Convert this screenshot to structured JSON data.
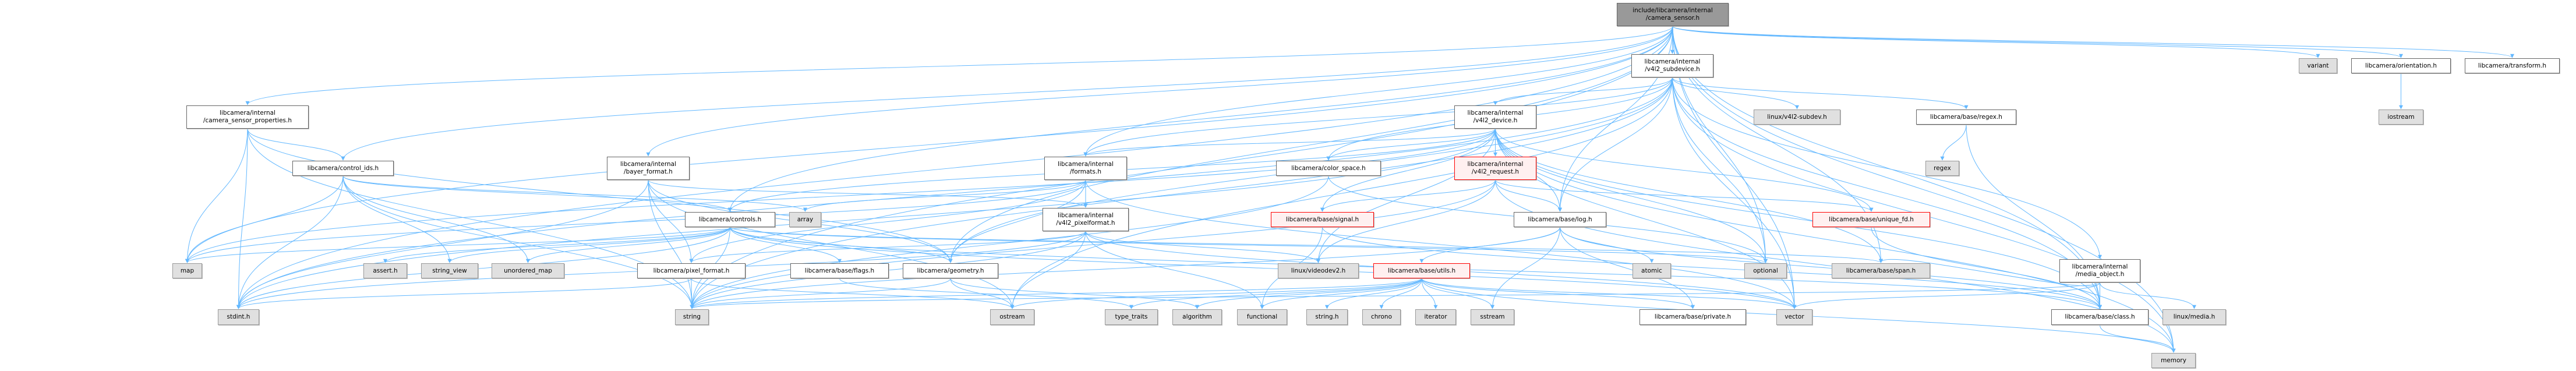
{
  "colors": {
    "edge": "#63b8ff",
    "root_fill": "#999999",
    "external_fill": "#e0e0e0",
    "truncated_border": "#ff0000"
  },
  "nodes": [
    {
      "id": "root",
      "label": "include/libcamera/internal\n/camera_sensor.h",
      "kind": "root"
    },
    {
      "id": "v4l2_subdevice",
      "label": "libcamera/internal\n/v4l2_subdevice.h",
      "kind": "white"
    },
    {
      "id": "variant",
      "label": "variant",
      "kind": "gray"
    },
    {
      "id": "orientation",
      "label": "libcamera/orientation.h",
      "kind": "white"
    },
    {
      "id": "transform",
      "label": "libcamera/transform.h",
      "kind": "white"
    },
    {
      "id": "csp",
      "label": "libcamera/internal\n/camera_sensor_properties.h",
      "kind": "white"
    },
    {
      "id": "v4l2_device",
      "label": "libcamera/internal\n/v4l2_device.h",
      "kind": "white"
    },
    {
      "id": "v4l2subdev_h",
      "label": "linux/v4l2-subdev.h",
      "kind": "gray"
    },
    {
      "id": "regex_h",
      "label": "libcamera/base/regex.h",
      "kind": "white"
    },
    {
      "id": "iostream",
      "label": "iostream",
      "kind": "gray"
    },
    {
      "id": "bayer",
      "label": "libcamera/internal\n/bayer_format.h",
      "kind": "white"
    },
    {
      "id": "formats",
      "label": "libcamera/internal\n/formats.h",
      "kind": "white"
    },
    {
      "id": "v4l2_request",
      "label": "libcamera/internal\n/v4l2_request.h",
      "kind": "red"
    },
    {
      "id": "control_ids",
      "label": "libcamera/control_ids.h",
      "kind": "white"
    },
    {
      "id": "color_space",
      "label": "libcamera/color_space.h",
      "kind": "white"
    },
    {
      "id": "regex",
      "label": "regex",
      "kind": "gray"
    },
    {
      "id": "v4l2_pixelformat",
      "label": "libcamera/internal\n/v4l2_pixelformat.h",
      "kind": "white"
    },
    {
      "id": "controls",
      "label": "libcamera/controls.h",
      "kind": "white"
    },
    {
      "id": "array",
      "label": "array",
      "kind": "gray"
    },
    {
      "id": "signal",
      "label": "libcamera/base/signal.h",
      "kind": "red"
    },
    {
      "id": "log",
      "label": "libcamera/base/log.h",
      "kind": "white"
    },
    {
      "id": "unique_fd",
      "label": "libcamera/base/unique_fd.h",
      "kind": "red"
    },
    {
      "id": "media_object",
      "label": "libcamera/internal\n/media_object.h",
      "kind": "white"
    },
    {
      "id": "map",
      "label": "map",
      "kind": "gray"
    },
    {
      "id": "assert",
      "label": "assert.h",
      "kind": "gray"
    },
    {
      "id": "string_view",
      "label": "string_view",
      "kind": "gray"
    },
    {
      "id": "unordered_map",
      "label": "unordered_map",
      "kind": "gray"
    },
    {
      "id": "pixel_format",
      "label": "libcamera/pixel_format.h",
      "kind": "white"
    },
    {
      "id": "flags",
      "label": "libcamera/base/flags.h",
      "kind": "white"
    },
    {
      "id": "geometry",
      "label": "libcamera/geometry.h",
      "kind": "white"
    },
    {
      "id": "videodev2",
      "label": "linux/videodev2.h",
      "kind": "gray"
    },
    {
      "id": "utils",
      "label": "libcamera/base/utils.h",
      "kind": "red"
    },
    {
      "id": "atomic",
      "label": "atomic",
      "kind": "gray"
    },
    {
      "id": "optional",
      "label": "optional",
      "kind": "gray"
    },
    {
      "id": "span",
      "label": "libcamera/base/span.h",
      "kind": "gray"
    },
    {
      "id": "stdint",
      "label": "stdint.h",
      "kind": "gray"
    },
    {
      "id": "string",
      "label": "string",
      "kind": "gray"
    },
    {
      "id": "ostream",
      "label": "ostream",
      "kind": "gray"
    },
    {
      "id": "type_traits",
      "label": "type_traits",
      "kind": "gray"
    },
    {
      "id": "algorithm",
      "label": "algorithm",
      "kind": "gray"
    },
    {
      "id": "functional",
      "label": "functional",
      "kind": "gray"
    },
    {
      "id": "string_h",
      "label": "string.h",
      "kind": "gray"
    },
    {
      "id": "chrono",
      "label": "chrono",
      "kind": "gray"
    },
    {
      "id": "iterator",
      "label": "iterator",
      "kind": "gray"
    },
    {
      "id": "sstream",
      "label": "sstream",
      "kind": "gray"
    },
    {
      "id": "private",
      "label": "libcamera/base/private.h",
      "kind": "white"
    },
    {
      "id": "vector",
      "label": "vector",
      "kind": "gray"
    },
    {
      "id": "class",
      "label": "libcamera/base/class.h",
      "kind": "white"
    },
    {
      "id": "linux_media",
      "label": "linux/media.h",
      "kind": "gray"
    },
    {
      "id": "memory",
      "label": "memory",
      "kind": "gray"
    }
  ],
  "edges": [
    [
      "root",
      "v4l2_subdevice"
    ],
    [
      "root",
      "variant"
    ],
    [
      "root",
      "orientation"
    ],
    [
      "root",
      "transform"
    ],
    [
      "root",
      "csp"
    ],
    [
      "root",
      "bayer"
    ],
    [
      "root",
      "formats"
    ],
    [
      "root",
      "control_ids"
    ],
    [
      "root",
      "controls"
    ],
    [
      "root",
      "geometry"
    ],
    [
      "root",
      "log"
    ],
    [
      "root",
      "class"
    ],
    [
      "root",
      "memory"
    ],
    [
      "root",
      "string"
    ],
    [
      "root",
      "stdint"
    ],
    [
      "root",
      "vector"
    ],
    [
      "root",
      "map"
    ],
    [
      "root",
      "optional"
    ],
    [
      "root",
      "span"
    ],
    [
      "v4l2_subdevice",
      "v4l2_device"
    ],
    [
      "v4l2_subdevice",
      "v4l2subdev_h"
    ],
    [
      "v4l2_subdevice",
      "regex_h"
    ],
    [
      "v4l2_subdevice",
      "color_space"
    ],
    [
      "v4l2_subdevice",
      "formats"
    ],
    [
      "v4l2_subdevice",
      "geometry"
    ],
    [
      "v4l2_subdevice",
      "media_object"
    ],
    [
      "v4l2_subdevice",
      "log"
    ],
    [
      "v4l2_subdevice",
      "class"
    ],
    [
      "v4l2_subdevice",
      "optional"
    ],
    [
      "v4l2_subdevice",
      "ostream"
    ],
    [
      "v4l2_subdevice",
      "stdint"
    ],
    [
      "v4l2_subdevice",
      "string"
    ],
    [
      "v4l2_subdevice",
      "vector"
    ],
    [
      "v4l2_subdevice",
      "memory"
    ],
    [
      "orientation",
      "iostream"
    ],
    [
      "csp",
      "control_ids"
    ],
    [
      "csp",
      "geometry"
    ],
    [
      "csp",
      "map"
    ],
    [
      "csp",
      "stdint"
    ],
    [
      "csp",
      "string"
    ],
    [
      "v4l2_device",
      "v4l2_request"
    ],
    [
      "v4l2_device",
      "color_space"
    ],
    [
      "v4l2_device",
      "formats"
    ],
    [
      "v4l2_device",
      "controls"
    ],
    [
      "v4l2_device",
      "signal"
    ],
    [
      "v4l2_device",
      "log"
    ],
    [
      "v4l2_device",
      "unique_fd"
    ],
    [
      "v4l2_device",
      "span"
    ],
    [
      "v4l2_device",
      "class"
    ],
    [
      "v4l2_device",
      "videodev2"
    ],
    [
      "v4l2_device",
      "optional"
    ],
    [
      "v4l2_device",
      "vector"
    ],
    [
      "v4l2_device",
      "map"
    ],
    [
      "v4l2_device",
      "memory"
    ],
    [
      "v4l2_device",
      "stdint"
    ],
    [
      "regex_h",
      "regex"
    ],
    [
      "regex_h",
      "class"
    ],
    [
      "bayer",
      "v4l2_pixelformat"
    ],
    [
      "bayer",
      "pixel_format"
    ],
    [
      "bayer",
      "ostream"
    ],
    [
      "bayer",
      "stdint"
    ],
    [
      "bayer",
      "string"
    ],
    [
      "bayer",
      "geometry"
    ],
    [
      "formats",
      "v4l2_pixelformat"
    ],
    [
      "formats",
      "pixel_format"
    ],
    [
      "formats",
      "geometry"
    ],
    [
      "formats",
      "array"
    ],
    [
      "formats",
      "map"
    ],
    [
      "formats",
      "vector"
    ],
    [
      "v4l2_request",
      "signal"
    ],
    [
      "v4l2_request",
      "log"
    ],
    [
      "v4l2_request",
      "unique_fd"
    ],
    [
      "v4l2_request",
      "videodev2"
    ],
    [
      "v4l2_request",
      "string"
    ],
    [
      "v4l2_request",
      "memory"
    ],
    [
      "control_ids",
      "controls"
    ],
    [
      "control_ids",
      "array"
    ],
    [
      "control_ids",
      "map"
    ],
    [
      "control_ids",
      "stdint"
    ],
    [
      "control_ids",
      "string"
    ],
    [
      "control_ids",
      "string_view"
    ],
    [
      "control_ids",
      "unordered_map"
    ],
    [
      "color_space",
      "optional"
    ],
    [
      "color_space",
      "string"
    ],
    [
      "v4l2_pixelformat",
      "pixel_format"
    ],
    [
      "v4l2_pixelformat",
      "videodev2"
    ],
    [
      "v4l2_pixelformat",
      "functional"
    ],
    [
      "v4l2_pixelformat",
      "ostream"
    ],
    [
      "v4l2_pixelformat",
      "stdint"
    ],
    [
      "v4l2_pixelformat",
      "string"
    ],
    [
      "v4l2_pixelformat",
      "vector"
    ],
    [
      "controls",
      "assert"
    ],
    [
      "controls",
      "map"
    ],
    [
      "controls",
      "string_view"
    ],
    [
      "controls",
      "unordered_map"
    ],
    [
      "controls",
      "flags"
    ],
    [
      "controls",
      "geometry"
    ],
    [
      "controls",
      "span"
    ],
    [
      "controls",
      "class"
    ],
    [
      "controls",
      "optional"
    ],
    [
      "controls",
      "stdint"
    ],
    [
      "controls",
      "string"
    ],
    [
      "controls",
      "vector"
    ],
    [
      "signal",
      "functional"
    ],
    [
      "signal",
      "class"
    ],
    [
      "log",
      "utils"
    ],
    [
      "log",
      "atomic"
    ],
    [
      "log",
      "sstream"
    ],
    [
      "log",
      "private"
    ],
    [
      "log",
      "class"
    ],
    [
      "log",
      "string"
    ],
    [
      "unique_fd",
      "class"
    ],
    [
      "media_object",
      "class"
    ],
    [
      "media_object",
      "linux_media"
    ],
    [
      "media_object",
      "span"
    ],
    [
      "media_object",
      "string"
    ],
    [
      "media_object",
      "vector"
    ],
    [
      "pixel_format",
      "stdint"
    ],
    [
      "pixel_format",
      "string"
    ],
    [
      "pixel_format",
      "ostream"
    ],
    [
      "flags",
      "type_traits"
    ],
    [
      "geometry",
      "algorithm"
    ],
    [
      "geometry",
      "ostream"
    ],
    [
      "geometry",
      "string"
    ],
    [
      "utils",
      "algorithm"
    ],
    [
      "utils",
      "chrono"
    ],
    [
      "utils",
      "functional"
    ],
    [
      "utils",
      "iterator"
    ],
    [
      "utils",
      "string_h"
    ],
    [
      "utils",
      "sstream"
    ],
    [
      "utils",
      "type_traits"
    ],
    [
      "utils",
      "private"
    ],
    [
      "utils",
      "vector"
    ],
    [
      "utils",
      "memory"
    ],
    [
      "utils",
      "ostream"
    ],
    [
      "utils",
      "string"
    ],
    [
      "class",
      "memory"
    ]
  ]
}
